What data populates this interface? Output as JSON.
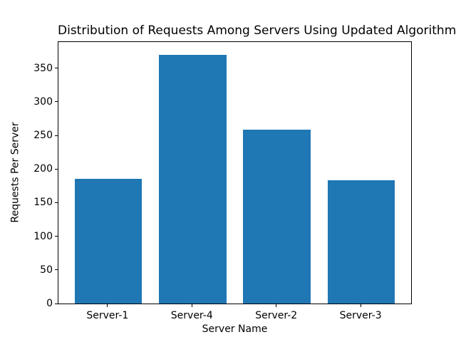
{
  "chart_data": {
    "type": "bar",
    "title": "Distribution of Requests Among Servers Using Updated Algorithm",
    "xlabel": "Server Name",
    "ylabel": "Requests Per Server",
    "categories": [
      "Server-1",
      "Server-4",
      "Server-2",
      "Server-3"
    ],
    "values": [
      186,
      370,
      259,
      183
    ],
    "yticks": [
      0,
      50,
      100,
      150,
      200,
      250,
      300,
      350
    ],
    "ylim": [
      0,
      389
    ],
    "bar_color": "#1f77b4",
    "background_color": "#ffffff",
    "grid": false,
    "legend": false,
    "bar_width_fraction": 0.8
  }
}
